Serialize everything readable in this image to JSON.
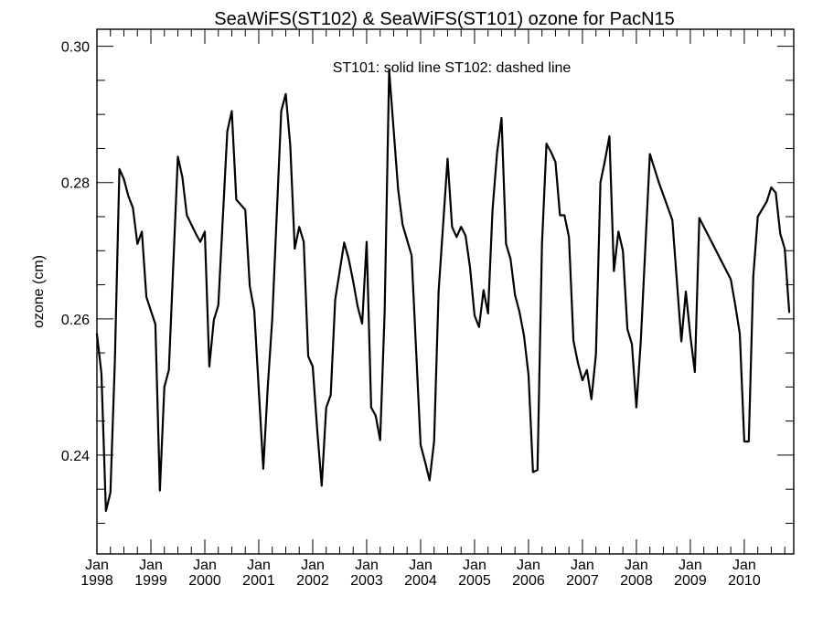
{
  "chart_data": {
    "type": "line",
    "title": "SeaWiFS(ST102) & SeaWiFS(ST101)  ozone for PacN15",
    "annotation": "ST101: solid line   ST102: dashed line",
    "ylabel": "ozone (cm)",
    "xlabel": "",
    "ylim": [
      0.2255,
      0.3025
    ],
    "xlim": [
      "1998-01",
      "2010-12"
    ],
    "grid": false,
    "y_ticks": [
      {
        "value": 0.24,
        "label": "0.24"
      },
      {
        "value": 0.26,
        "label": "0.26"
      },
      {
        "value": 0.28,
        "label": "0.28"
      },
      {
        "value": 0.3,
        "label": "0.30"
      }
    ],
    "x_ticks": [
      {
        "date": "1998-01",
        "month": "Jan",
        "year": "1998"
      },
      {
        "date": "1999-01",
        "month": "Jan",
        "year": "1999"
      },
      {
        "date": "2000-01",
        "month": "Jan",
        "year": "2000"
      },
      {
        "date": "2001-01",
        "month": "Jan",
        "year": "2001"
      },
      {
        "date": "2002-01",
        "month": "Jan",
        "year": "2002"
      },
      {
        "date": "2003-01",
        "month": "Jan",
        "year": "2003"
      },
      {
        "date": "2004-01",
        "month": "Jan",
        "year": "2004"
      },
      {
        "date": "2005-01",
        "month": "Jan",
        "year": "2005"
      },
      {
        "date": "2006-01",
        "month": "Jan",
        "year": "2006"
      },
      {
        "date": "2007-01",
        "month": "Jan",
        "year": "2007"
      },
      {
        "date": "2008-01",
        "month": "Jan",
        "year": "2008"
      },
      {
        "date": "2009-01",
        "month": "Jan",
        "year": "2009"
      },
      {
        "date": "2010-01",
        "month": "Jan",
        "year": "2010"
      }
    ],
    "series": [
      {
        "name": "ST101",
        "style": "solid",
        "color": "#000000",
        "points": [
          [
            "1998-01",
            0.2578
          ],
          [
            "1998-02",
            0.252
          ],
          [
            "1998-03",
            0.2318
          ],
          [
            "1998-04",
            0.2345
          ],
          [
            "1998-05",
            0.254
          ],
          [
            "1998-06",
            0.282
          ],
          [
            "1998-07",
            0.2805
          ],
          [
            "1998-08",
            0.278
          ],
          [
            "1998-09",
            0.2763
          ],
          [
            "1998-10",
            0.271
          ],
          [
            "1998-11",
            0.2728
          ],
          [
            "1998-12",
            0.2632
          ],
          [
            "1999-02",
            0.2592
          ],
          [
            "1999-03",
            0.2348
          ],
          [
            "1999-04",
            0.25
          ],
          [
            "1999-05",
            0.2525
          ],
          [
            "1999-07",
            0.2838
          ],
          [
            "1999-08",
            0.2808
          ],
          [
            "1999-09",
            0.2752
          ],
          [
            "1999-11",
            0.2725
          ],
          [
            "1999-12",
            0.2713
          ],
          [
            "2000-01",
            0.2728
          ],
          [
            "2000-02",
            0.253
          ],
          [
            "2000-03",
            0.2598
          ],
          [
            "2000-04",
            0.262
          ],
          [
            "2000-06",
            0.2875
          ],
          [
            "2000-07",
            0.2905
          ],
          [
            "2000-08",
            0.2775
          ],
          [
            "2000-10",
            0.276
          ],
          [
            "2000-11",
            0.2648
          ],
          [
            "2000-12",
            0.2612
          ],
          [
            "2001-02",
            0.238
          ],
          [
            "2001-03",
            0.25
          ],
          [
            "2001-04",
            0.26
          ],
          [
            "2001-06",
            0.2905
          ],
          [
            "2001-07",
            0.293
          ],
          [
            "2001-08",
            0.2855
          ],
          [
            "2001-09",
            0.2703
          ],
          [
            "2001-10",
            0.2735
          ],
          [
            "2001-11",
            0.2713
          ],
          [
            "2001-12",
            0.2545
          ],
          [
            "2002-01",
            0.253
          ],
          [
            "2002-02",
            0.2437
          ],
          [
            "2002-03",
            0.2355
          ],
          [
            "2002-04",
            0.247
          ],
          [
            "2002-05",
            0.2488
          ],
          [
            "2002-06",
            0.2628
          ],
          [
            "2002-08",
            0.2712
          ],
          [
            "2002-09",
            0.2688
          ],
          [
            "2002-10",
            0.2655
          ],
          [
            "2002-11",
            0.2618
          ],
          [
            "2002-12",
            0.2593
          ],
          [
            "2003-01",
            0.2713
          ],
          [
            "2003-02",
            0.247
          ],
          [
            "2003-03",
            0.2458
          ],
          [
            "2003-04",
            0.2422
          ],
          [
            "2003-05",
            0.261
          ],
          [
            "2003-06",
            0.2965
          ],
          [
            "2003-08",
            0.279
          ],
          [
            "2003-09",
            0.2738
          ],
          [
            "2003-11",
            0.2693
          ],
          [
            "2004-01",
            0.2415
          ],
          [
            "2004-02",
            0.239
          ],
          [
            "2004-03",
            0.2363
          ],
          [
            "2004-04",
            0.242
          ],
          [
            "2004-05",
            0.264
          ],
          [
            "2004-07",
            0.2835
          ],
          [
            "2004-08",
            0.2735
          ],
          [
            "2004-09",
            0.272
          ],
          [
            "2004-10",
            0.2735
          ],
          [
            "2004-11",
            0.2722
          ],
          [
            "2004-12",
            0.2675
          ],
          [
            "2005-01",
            0.2605
          ],
          [
            "2005-02",
            0.2588
          ],
          [
            "2005-03",
            0.2642
          ],
          [
            "2005-04",
            0.2608
          ],
          [
            "2005-05",
            0.276
          ],
          [
            "2005-06",
            0.2843
          ],
          [
            "2005-07",
            0.2895
          ],
          [
            "2005-08",
            0.271
          ],
          [
            "2005-09",
            0.2688
          ],
          [
            "2005-10",
            0.2635
          ],
          [
            "2005-11",
            0.261
          ],
          [
            "2005-12",
            0.2575
          ],
          [
            "2006-01",
            0.2518
          ],
          [
            "2006-02",
            0.2375
          ],
          [
            "2006-03",
            0.2378
          ],
          [
            "2006-04",
            0.271
          ],
          [
            "2006-05",
            0.2857
          ],
          [
            "2006-06",
            0.2845
          ],
          [
            "2006-07",
            0.283
          ],
          [
            "2006-08",
            0.2752
          ],
          [
            "2006-09",
            0.2752
          ],
          [
            "2006-10",
            0.272
          ],
          [
            "2006-11",
            0.2568
          ],
          [
            "2006-12",
            0.2535
          ],
          [
            "2007-01",
            0.251
          ],
          [
            "2007-02",
            0.2525
          ],
          [
            "2007-03",
            0.2482
          ],
          [
            "2007-04",
            0.2548
          ],
          [
            "2007-05",
            0.28
          ],
          [
            "2007-06",
            0.2832
          ],
          [
            "2007-07",
            0.2868
          ],
          [
            "2007-08",
            0.267
          ],
          [
            "2007-09",
            0.2728
          ],
          [
            "2007-10",
            0.27
          ],
          [
            "2007-11",
            0.2585
          ],
          [
            "2007-12",
            0.2563
          ],
          [
            "2008-01",
            0.247
          ],
          [
            "2008-02",
            0.257
          ],
          [
            "2008-04",
            0.2842
          ],
          [
            "2008-06",
            0.28
          ],
          [
            "2008-09",
            0.2745
          ],
          [
            "2008-11",
            0.2567
          ],
          [
            "2008-12",
            0.264
          ],
          [
            "2009-01",
            0.2575
          ],
          [
            "2009-02",
            0.2522
          ],
          [
            "2009-03",
            0.2748
          ],
          [
            "2009-10",
            0.2658
          ],
          [
            "2009-11",
            0.262
          ],
          [
            "2009-12",
            0.2578
          ],
          [
            "2010-01",
            0.242
          ],
          [
            "2010-02",
            0.242
          ],
          [
            "2010-03",
            0.2662
          ],
          [
            "2010-04",
            0.275
          ],
          [
            "2010-06",
            0.2772
          ],
          [
            "2010-07",
            0.2793
          ],
          [
            "2010-08",
            0.2785
          ],
          [
            "2010-09",
            0.2725
          ],
          [
            "2010-10",
            0.2703
          ],
          [
            "2010-11",
            0.261
          ]
        ]
      }
    ]
  }
}
